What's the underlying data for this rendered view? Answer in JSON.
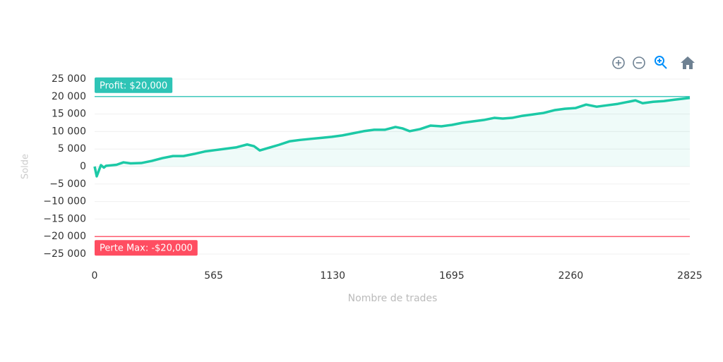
{
  "chart_data": {
    "type": "area",
    "x_label": "Nombre de trades",
    "y_label": "Solde",
    "x": [
      0,
      10,
      30,
      44,
      54,
      104,
      137,
      171,
      221,
      271,
      322,
      372,
      422,
      472,
      523,
      573,
      623,
      674,
      724,
      757,
      784,
      824,
      875,
      925,
      975,
      1025,
      1076,
      1126,
      1176,
      1227,
      1277,
      1327,
      1377,
      1428,
      1461,
      1495,
      1545,
      1595,
      1646,
      1696,
      1746,
      1796,
      1847,
      1897,
      1937,
      1981,
      2031,
      2081,
      2131,
      2182,
      2232,
      2282,
      2333,
      2383,
      2433,
      2483,
      2534,
      2567,
      2601,
      2651,
      2701,
      2752,
      2825
    ],
    "series": [
      {
        "name": "Solde",
        "color": "#1cc9a6",
        "values": [
          0,
          -2800,
          400,
          -300,
          200,
          500,
          1200,
          900,
          1000,
          1600,
          2400,
          3000,
          3000,
          3600,
          4300,
          4700,
          5100,
          5500,
          6300,
          5800,
          4600,
          5300,
          6200,
          7200,
          7600,
          7900,
          8200,
          8500,
          8900,
          9500,
          10100,
          10500,
          10500,
          11300,
          10900,
          10100,
          10700,
          11700,
          11500,
          11900,
          12500,
          12900,
          13300,
          13900,
          13700,
          13900,
          14500,
          14900,
          15300,
          16100,
          16500,
          16700,
          17700,
          17100,
          17500,
          17900,
          18500,
          18900,
          18100,
          18500,
          18700,
          19100,
          19600
        ]
      }
    ],
    "xlim": [
      0,
      2825
    ],
    "xticks": [
      0,
      565,
      1130,
      1695,
      2260,
      2825
    ],
    "ylim": [
      -25000,
      25000
    ],
    "yticks": [
      {
        "value": 25000,
        "label": "25 000"
      },
      {
        "value": 20000,
        "label": "20 000"
      },
      {
        "value": 15000,
        "label": "15 000"
      },
      {
        "value": 10000,
        "label": "10 000"
      },
      {
        "value": 5000,
        "label": "5 000"
      },
      0,
      {
        "value": -5000,
        "label": "−5 000"
      },
      {
        "value": -10000,
        "label": "−10 000"
      },
      {
        "value": -15000,
        "label": "−15 000"
      },
      {
        "value": -20000,
        "label": "−20 000"
      },
      {
        "value": -25000,
        "label": "−25 000"
      }
    ],
    "grid": true,
    "annotations": [
      {
        "y": 20000,
        "label": "Profit: $20,000",
        "color": "#2ec4b6"
      },
      {
        "y": -20000,
        "label": "Perte Max: -$20,000",
        "color": "#ff4d61"
      }
    ]
  }
}
